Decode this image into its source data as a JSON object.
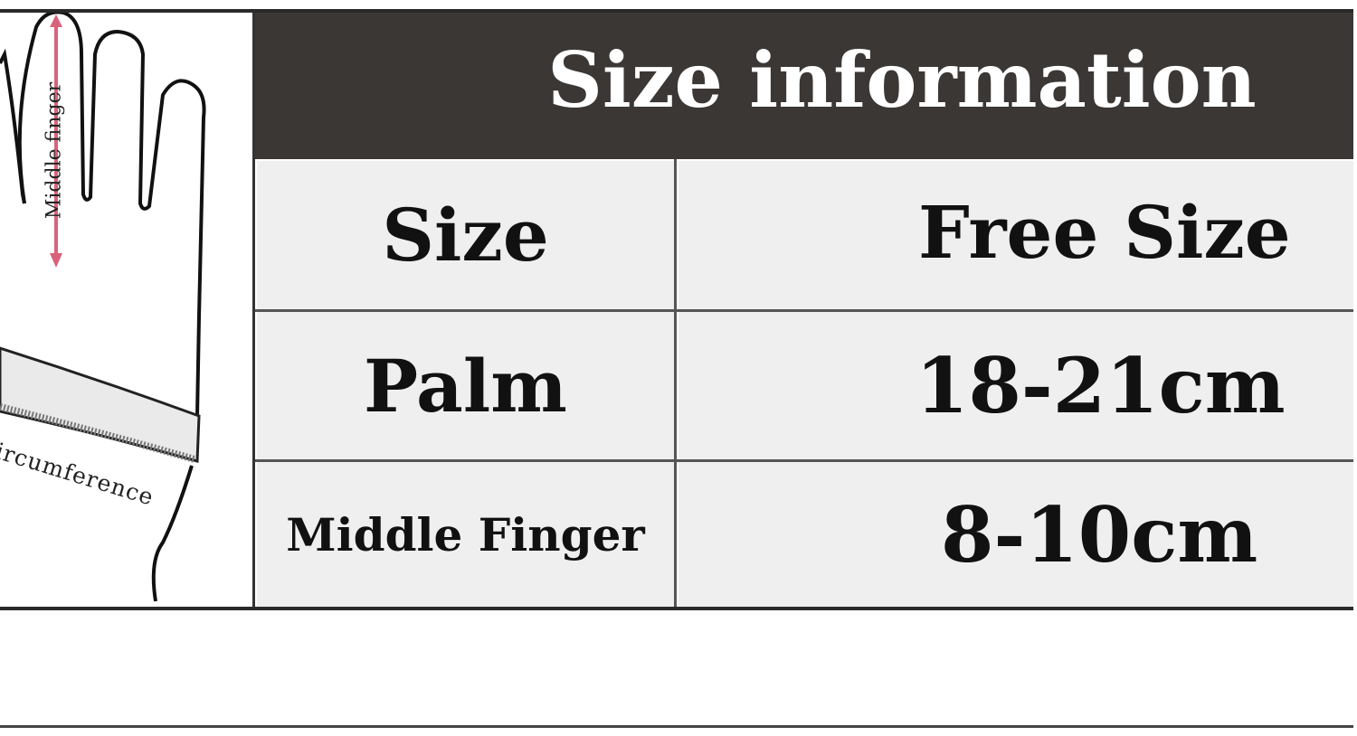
{
  "illustration": {
    "middle_finger_label": "Middle finger",
    "circumference_label": "ircumference"
  },
  "table": {
    "title": "Size information",
    "rows": [
      {
        "label": "Size",
        "value": "Free Size"
      },
      {
        "label": "Palm",
        "value": "18-21cm"
      },
      {
        "label": "Middle Finger",
        "value": "8-10cm"
      }
    ]
  },
  "colors": {
    "header_bg": "#3b3735",
    "cell_bg": "#efefef",
    "arrow": "#d9627a"
  }
}
